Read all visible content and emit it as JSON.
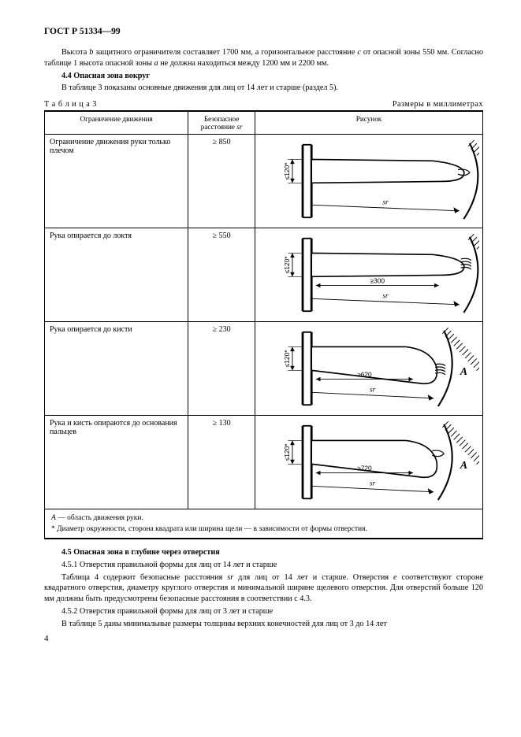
{
  "header": "ГОСТ Р 51334—99",
  "para1": "Высота <i>b</i> защитного ограничителя составляет 1700 мм, а горизонтальное расстояние <i>c</i> от опасной зоны 550 мм. Согласно таблице 1 высота опасной зоны <i>a</i> не должна находиться между 1200 мм и 2200 мм.",
  "heading44": "4.4 Опасная зона вокруг",
  "para44": "В таблице 3 показаны основные движения для лиц от 14 лет и старше (раздел 5).",
  "table_label": "Т а б л и ц а  3",
  "units_label": "Размеры в миллиметрах",
  "col1_header": "Ограничение движения",
  "col2_header": "Безопасное расстояние <i>sr</i>",
  "col3_header": "Рисунок",
  "rows": [
    {
      "desc": "Ограничение движения руки только плечом",
      "dist": "≥ 850",
      "dim_h": "≤120*",
      "dim_w": "",
      "finger": 0,
      "bend": 0,
      "edge": 285
    },
    {
      "desc": "Рука опирается до локтя",
      "dist": "≥ 550",
      "dim_h": "≤120*",
      "dim_w": "≥300",
      "finger": 1,
      "bend": 0,
      "edge": 285
    },
    {
      "desc": "Рука опирается до кисти",
      "dist": "≥ 230",
      "dim_h": "≤120*",
      "dim_w": "≥620",
      "finger": 1,
      "bend": 1,
      "edge": 250
    },
    {
      "desc": "Рука и кисть опираются до основания пальцев",
      "dist": "≥ 130",
      "dim_h": "≤120*",
      "dim_w": "≥720",
      "finger": 0,
      "bend": 1,
      "edge": 250
    }
  ],
  "noteA": "<i>A</i> — область движения руки.",
  "noteStar": "* Диаметр окружности, сторона квадрата или ширина щели — в зависимости от формы отверстия.",
  "heading45": "4.5 Опасная зона в глубине через отверстия",
  "para451a": "4.5.1 Отверстия правильной формы для лиц от 14 лет и старше",
  "para451b": "Таблица 4 содержит безопасные расстояния <i>sr</i> для лиц от 14 лет и старше. Отверстия <i>e</i> соответствуют стороне квадратного отверстия, диаметру круглого отверстия и минимальной ширине щелевого отверстия. Для отверстий больше 120 мм должны быть предусмотрены безопасные расстояния в соответствии с 4.3.",
  "para452a": "4.5.2 Отверстия правильной формы для лиц от 3 лет и старше",
  "para452b": "В таблице 5 даны минимальные размеры толщины верхних конечностей для лиц от 3 до 14 лет",
  "page_number": "4",
  "svg_style": {
    "stroke": "#000000",
    "stroke_width_arm": 1.8,
    "stroke_width_dim": 1.0,
    "hatch_spacing": 6,
    "label_font_size": 9,
    "A_font_size": 14
  }
}
